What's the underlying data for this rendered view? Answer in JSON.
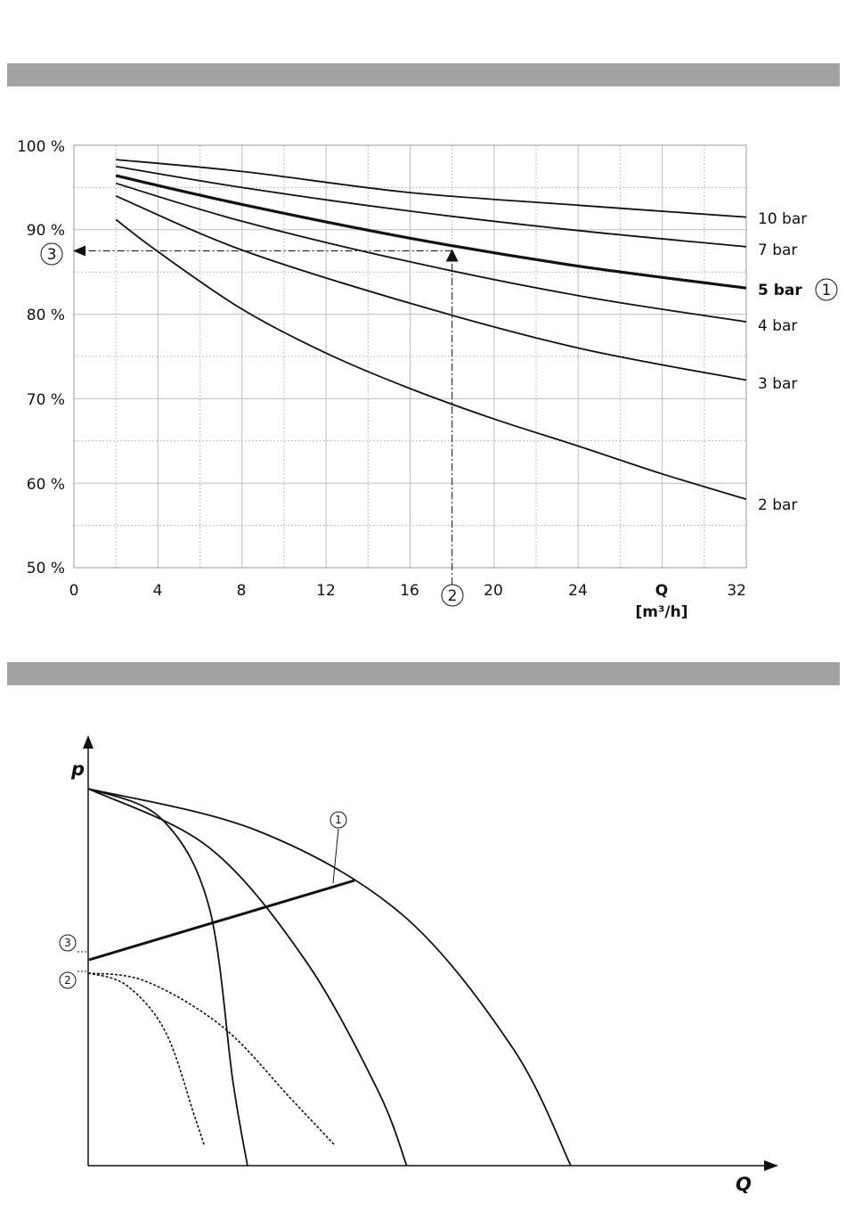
{
  "chart_data": [
    {
      "type": "line",
      "xlabel": "Q",
      "xunit": "[m³/h]",
      "ylabel": "",
      "xlim": [
        0,
        32
      ],
      "ylim": [
        50,
        100
      ],
      "xticks": [
        "0",
        "4",
        "8",
        "12",
        "16",
        "20",
        "24",
        "32"
      ],
      "yticks": [
        "100 %",
        "90 %",
        "80 %",
        "70 %",
        "60 %",
        "50 %"
      ],
      "grid": true,
      "series": [
        {
          "name": "10 bar",
          "bold": false,
          "points": [
            [
              2,
              98.3
            ],
            [
              8,
              96.9
            ],
            [
              16,
              94.4
            ],
            [
              24,
              92.9
            ],
            [
              32,
              91.5
            ]
          ]
        },
        {
          "name": "7 bar",
          "bold": false,
          "points": [
            [
              2,
              97.5
            ],
            [
              8,
              95.0
            ],
            [
              16,
              92.2
            ],
            [
              24,
              89.9
            ],
            [
              32,
              88.0
            ]
          ]
        },
        {
          "name": "5 bar",
          "bold": true,
          "callout": "1",
          "points": [
            [
              2,
              96.4
            ],
            [
              8,
              93.0
            ],
            [
              16,
              89.0
            ],
            [
              24,
              85.7
            ],
            [
              32,
              83.1
            ]
          ]
        },
        {
          "name": "4 bar",
          "bold": false,
          "points": [
            [
              2,
              95.5
            ],
            [
              8,
              91.0
            ],
            [
              16,
              86.2
            ],
            [
              24,
              82.2
            ],
            [
              32,
              79.1
            ]
          ]
        },
        {
          "name": "3 bar",
          "bold": false,
          "points": [
            [
              2,
              94.0
            ],
            [
              8,
              87.6
            ],
            [
              16,
              81.3
            ],
            [
              24,
              76.0
            ],
            [
              32,
              72.2
            ]
          ]
        },
        {
          "name": "2 bar",
          "bold": false,
          "points": [
            [
              2,
              91.2
            ],
            [
              4,
              87.4
            ],
            [
              8,
              80.6
            ],
            [
              12,
              75.4
            ],
            [
              16,
              71.2
            ],
            [
              20,
              67.6
            ],
            [
              24,
              64.4
            ],
            [
              28,
              61.1
            ],
            [
              32,
              58.1
            ]
          ]
        }
      ],
      "annotation": {
        "x": 18,
        "y": 87.5,
        "x_callout": "2",
        "y_callout": "3"
      }
    },
    {
      "type": "line",
      "xlabel": "Q",
      "ylabel": "p",
      "callouts": [
        "1",
        "2",
        "3"
      ],
      "series": [
        {
          "style": "solid",
          "points": [
            [
              0,
              0.9
            ],
            [
              0.15,
              0.83
            ],
            [
              0.25,
              0.62
            ],
            [
              0.3,
              0.2
            ],
            [
              0.33,
              0
            ]
          ]
        },
        {
          "style": "solid",
          "points": [
            [
              0,
              0.9
            ],
            [
              0.25,
              0.76
            ],
            [
              0.45,
              0.49
            ],
            [
              0.6,
              0.18
            ],
            [
              0.66,
              0
            ]
          ]
        },
        {
          "style": "solid",
          "points": [
            [
              0,
              0.9
            ],
            [
              0.35,
              0.8
            ],
            [
              0.65,
              0.6
            ],
            [
              0.88,
              0.28
            ],
            [
              1.0,
              0
            ]
          ]
        },
        {
          "style": "dotted",
          "points": [
            [
              0,
              0.46
            ],
            [
              0.08,
              0.43
            ],
            [
              0.16,
              0.32
            ],
            [
              0.22,
              0.12
            ],
            [
              0.24,
              0.05
            ]
          ]
        },
        {
          "style": "dotted",
          "points": [
            [
              0,
              0.46
            ],
            [
              0.12,
              0.44
            ],
            [
              0.28,
              0.33
            ],
            [
              0.42,
              0.16
            ],
            [
              0.51,
              0.05
            ]
          ]
        }
      ],
      "system_line": [
        [
          0,
          0.46
        ],
        [
          0.5,
          0.66
        ]
      ]
    }
  ]
}
